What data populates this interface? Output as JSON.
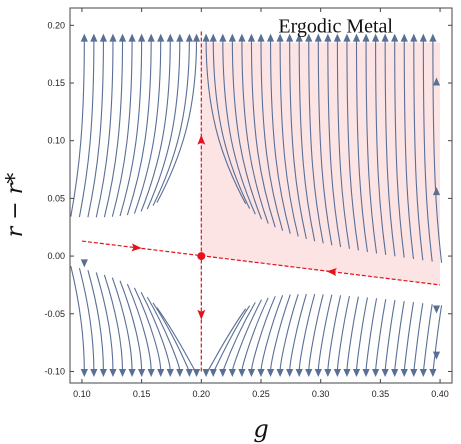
{
  "chart_data": {
    "type": "streamplot",
    "xlabel": "g",
    "ylabel": "r − r*",
    "xlim": [
      0.09,
      0.41
    ],
    "ylim": [
      -0.11,
      0.215
    ],
    "x_ticks": [
      "0.10",
      "0.15",
      "0.20",
      "0.25",
      "0.30",
      "0.35",
      "0.40"
    ],
    "y_ticks": [
      "-0.10",
      "-0.05",
      "0.00",
      "0.05",
      "0.10",
      "0.15",
      "0.20"
    ],
    "annotations": [
      {
        "text": "Ergodic Metal",
        "x": 0.3,
        "y": 0.2
      }
    ],
    "shaded_region": {
      "name": "Ergodic Metal",
      "x": [
        0.2,
        0.4
      ],
      "y_top": 0.185,
      "lower_boundary_slope": -0.19,
      "color": "#fde4e4"
    },
    "fixed_point": {
      "x": 0.2,
      "y": 0.0
    },
    "separatrices": [
      {
        "kind": "vertical",
        "x": 0.2,
        "y": [
          -0.1,
          0.195
        ]
      },
      {
        "kind": "line",
        "x": [
          0.1,
          0.4
        ],
        "y": [
          0.013,
          -0.025
        ]
      }
    ],
    "stream_columns_x": [
      0.102,
      0.11,
      0.118,
      0.126,
      0.134,
      0.142,
      0.15,
      0.158,
      0.166,
      0.174,
      0.182,
      0.19,
      0.196,
      0.204,
      0.21,
      0.218,
      0.226,
      0.234,
      0.242,
      0.25,
      0.258,
      0.266,
      0.274,
      0.282,
      0.29,
      0.298,
      0.306,
      0.314,
      0.322,
      0.33,
      0.338,
      0.346,
      0.354,
      0.362,
      0.37,
      0.378,
      0.386,
      0.394
    ],
    "colors": {
      "stream": "#5a6f96",
      "separatrix": "#e3121b",
      "shade": "#fde4e4",
      "frame": "#444444"
    }
  }
}
